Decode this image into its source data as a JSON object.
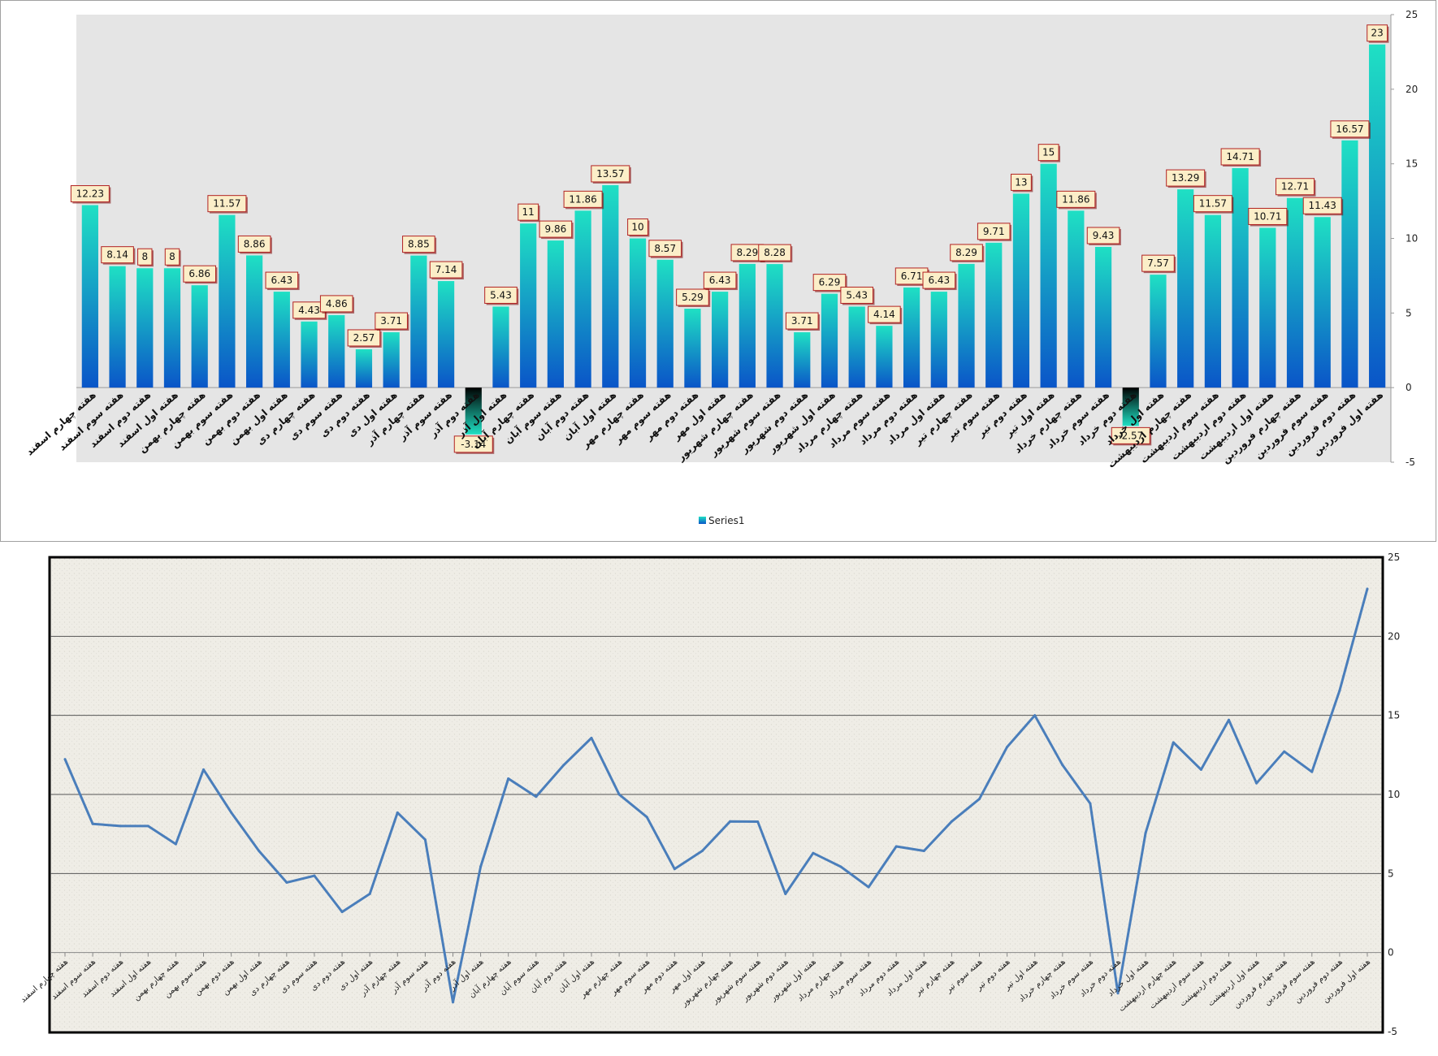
{
  "chart_data": [
    {
      "type": "bar",
      "categories": [
        "هفته چهارم اسفند",
        "هفته سوم اسفند",
        "هفته دوم اسفند",
        "هفته اول اسفند",
        "هفته چهارم بهمن",
        "هفته سوم بهمن",
        "هفته دوم بهمن",
        "هفته اول بهمن",
        "هفته چهارم دی",
        "هفته سوم دی",
        "هفته دوم دی",
        "هفته اول دی",
        "هفته چهارم آذر",
        "هفته سوم آذر",
        "هفته دوم آذر",
        "هفته اول آذر",
        "هفته چهارم آبان",
        "هفته سوم آبان",
        "هفته دوم آبان",
        "هفته اول آبان",
        "هفته چهارم مهر",
        "هفته سوم مهر",
        "هفته دوم مهر",
        "هفته اول مهر",
        "هفته چهارم شهریور",
        "هفته سوم شهریور",
        "هفته دوم شهریور",
        "هفته اول شهریور",
        "هفته چهارم مرداد",
        "هفته سوم مرداد",
        "هفته دوم مرداد",
        "هفته اول مرداد",
        "هفته چهارم تیر",
        "هفته سوم تیر",
        "هفته دوم تیر",
        "هفته اول تیر",
        "هفته چهارم خرداد",
        "هفته سوم خرداد",
        "هفته دوم خرداد",
        "هفته اول خرداد",
        "هفته چهارم اردیبهشت",
        "هفته سوم اردیبهشت",
        "هفته دوم اردیبهشت",
        "هفته اول اردیبهشت",
        "هفته چهارم فروردین",
        "هفته سوم فروردین",
        "هفته دوم فروردین",
        "هفته اول فروردین"
      ],
      "series": [
        {
          "name": "Series1",
          "values": [
            12.23,
            8.14,
            8,
            8,
            6.86,
            11.57,
            8.86,
            6.43,
            4.43,
            4.86,
            2.57,
            3.71,
            8.85,
            7.14,
            -3.14,
            5.43,
            11,
            9.86,
            11.86,
            13.57,
            10,
            8.57,
            5.29,
            6.43,
            8.29,
            8.28,
            3.71,
            6.29,
            5.43,
            4.14,
            6.71,
            6.43,
            8.29,
            9.71,
            13,
            15,
            11.86,
            9.43,
            -2.57,
            7.57,
            13.29,
            11.57,
            14.71,
            10.71,
            12.71,
            11.43,
            16.57,
            23
          ]
        }
      ],
      "data_labels": true,
      "ylim": [
        -5,
        25
      ],
      "yticks": [
        -5,
        0,
        5,
        10,
        15,
        20,
        25
      ],
      "y_axis_side": "right",
      "legend": "bottom-center",
      "grid": false,
      "colors": {
        "bar_top": "#1fe0c4",
        "bar_bottom": "#0a55c8",
        "plot_bg": "#e5e5e5",
        "label_bg": "#fbeec8",
        "label_border": "#b22222"
      }
    },
    {
      "type": "line",
      "categories": [
        "هفته چهارم اسفند",
        "هفته سوم اسفند",
        "هفته دوم اسفند",
        "هفته اول اسفند",
        "هفته چهارم بهمن",
        "هفته سوم بهمن",
        "هفته دوم بهمن",
        "هفته اول بهمن",
        "هفته چهارم دی",
        "هفته سوم دی",
        "هفته دوم دی",
        "هفته اول دی",
        "هفته چهارم آذر",
        "هفته سوم آذر",
        "هفته دوم آذر",
        "هفته اول آذر",
        "هفته چهارم آبان",
        "هفته سوم آبان",
        "هفته دوم آبان",
        "هفته اول آبان",
        "هفته چهارم مهر",
        "هفته سوم مهر",
        "هفته دوم مهر",
        "هفته اول مهر",
        "هفته چهارم شهریور",
        "هفته سوم شهریور",
        "هفته دوم شهریور",
        "هفته اول شهریور",
        "هفته چهارم مرداد",
        "هفته سوم مرداد",
        "هفته دوم مرداد",
        "هفته اول مرداد",
        "هفته چهارم تیر",
        "هفته سوم تیر",
        "هفته دوم تیر",
        "هفته اول تیر",
        "هفته چهارم خرداد",
        "هفته سوم خرداد",
        "هفته دوم خرداد",
        "هفته اول خرداد",
        "هفته چهارم اردیبهشت",
        "هفته سوم اردیبهشت",
        "هفته دوم اردیبهشت",
        "هفته اول اردیبهشت",
        "هفته چهارم فروردین",
        "هفته سوم فروردین",
        "هفته دوم فروردین",
        "هفته اول فروردین"
      ],
      "series": [
        {
          "values": [
            12.23,
            8.14,
            8,
            8,
            6.86,
            11.57,
            8.86,
            6.43,
            4.43,
            4.86,
            2.57,
            3.71,
            8.85,
            7.14,
            -3.14,
            5.43,
            11,
            9.86,
            11.86,
            13.57,
            10,
            8.57,
            5.29,
            6.43,
            8.29,
            8.28,
            3.71,
            6.29,
            5.43,
            4.14,
            6.71,
            6.43,
            8.29,
            9.71,
            13,
            15,
            11.86,
            9.43,
            -2.57,
            7.57,
            13.29,
            11.57,
            14.71,
            10.71,
            12.71,
            11.43,
            16.57,
            23
          ]
        }
      ],
      "ylim": [
        -5,
        25
      ],
      "yticks": [
        -5,
        0,
        5,
        10,
        15,
        20,
        25
      ],
      "y_axis_side": "right",
      "grid": true,
      "colors": {
        "line": "#4a7ebb",
        "plot_bg": "#efede6",
        "grid": "#555555"
      }
    }
  ]
}
